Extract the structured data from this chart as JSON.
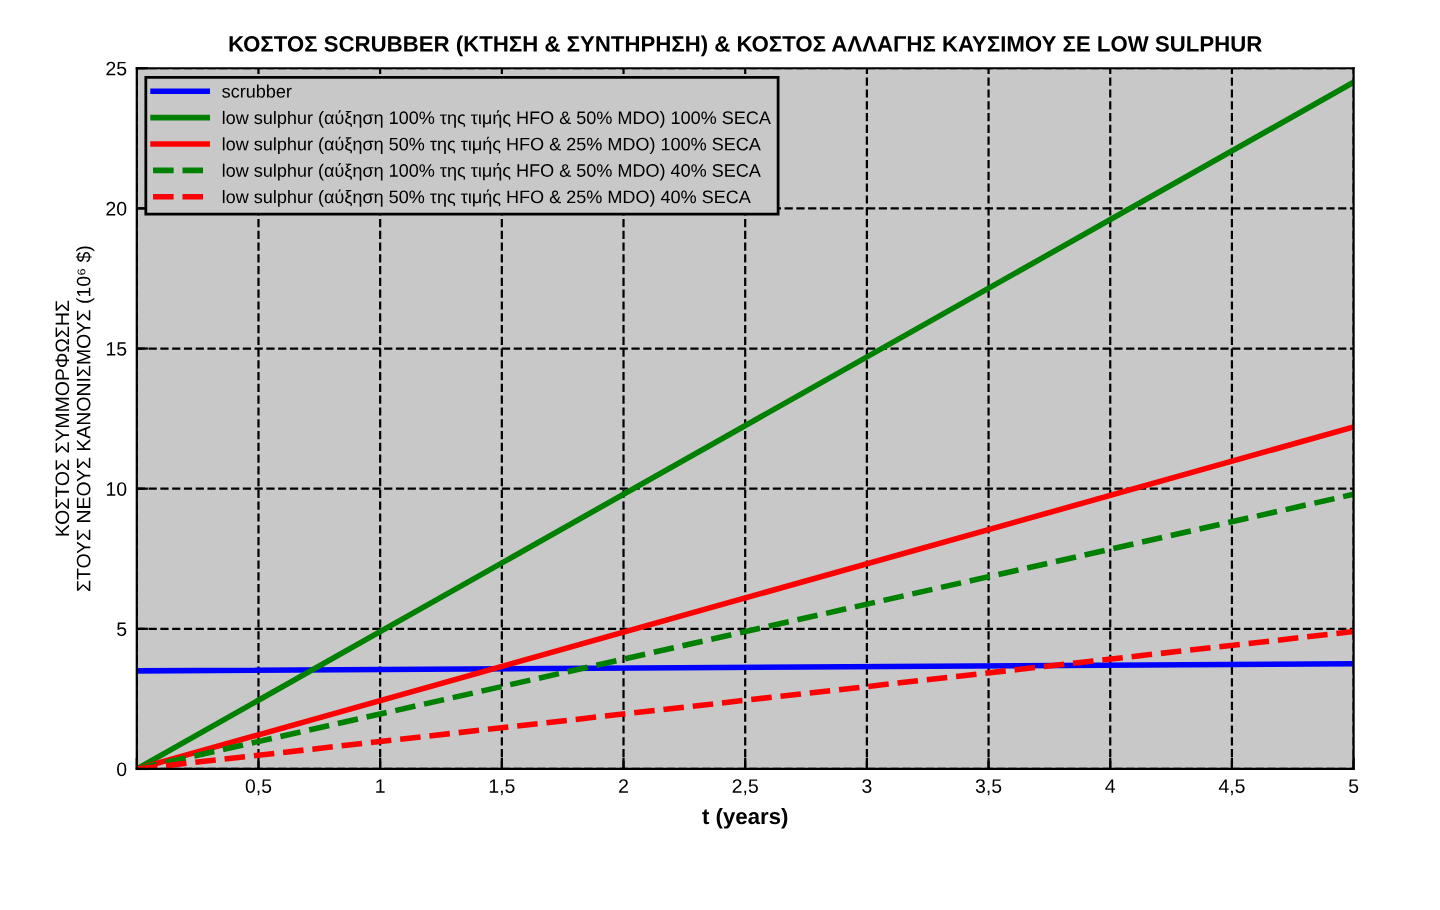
{
  "chart_data": {
    "type": "line",
    "title": "ΚΟΣΤΟΣ SCRUBBER (ΚΤΗΣΗ & ΣΥΝΤΗΡΗΣΗ) & ΚΟΣΤΟΣ ΑΛΛΑΓΗΣ ΚΑΥΣΙΜΟΥ ΣΕ LOW SULPHUR",
    "xlabel": "t (years)",
    "ylabel": "ΚΟΣΤΟΣ ΣΥΜΜΟΡΦΩΣΗΣ\nΣΤΟΥΣ ΝΕΟΥΣ ΚΑΝΟΝΙΣΜΟΥΣ (10⁶ $)",
    "x": [
      0,
      5
    ],
    "series": [
      {
        "name": "scrubber",
        "color": "#0000ff",
        "values": [
          3.5,
          3.75
        ],
        "line_style": "solid"
      },
      {
        "name": "low sulphur (αύξηση 100% της τιμής HFO & 50% MDO) 100% SECA",
        "color": "#008000",
        "values": [
          0,
          24.5
        ],
        "line_style": "solid"
      },
      {
        "name": "low sulphur (αύξηση 50% της τιμής HFO & 25% MDO) 100% SECA",
        "color": "#ff0000",
        "values": [
          0,
          12.2
        ],
        "line_style": "solid"
      },
      {
        "name": "low sulphur (αύξηση 100% της τιμής HFO & 50% MDO) 40% SECA",
        "color": "#008000",
        "values": [
          0,
          9.8
        ],
        "line_style": "dashed"
      },
      {
        "name": "low sulphur (αύξηση 50% της τιμής HFO & 25% MDO) 40% SECA",
        "color": "#ff0000",
        "values": [
          0,
          4.9
        ],
        "line_style": "dashed"
      }
    ],
    "xlim": [
      0,
      5
    ],
    "ylim": [
      0,
      25
    ],
    "xticks": [
      {
        "value": 0,
        "label": null
      },
      {
        "value": 0.5,
        "label": "0,5"
      },
      1,
      {
        "value": 1.5,
        "label": "1,5"
      },
      2,
      {
        "value": 2.5,
        "label": "2,5"
      },
      3,
      {
        "value": 3.5,
        "label": "3,5"
      },
      4,
      {
        "value": 4.5,
        "label": "4,5"
      },
      5
    ],
    "yticks": [
      0,
      5,
      10,
      15,
      20,
      25
    ],
    "grid": true,
    "legend": "top left"
  }
}
